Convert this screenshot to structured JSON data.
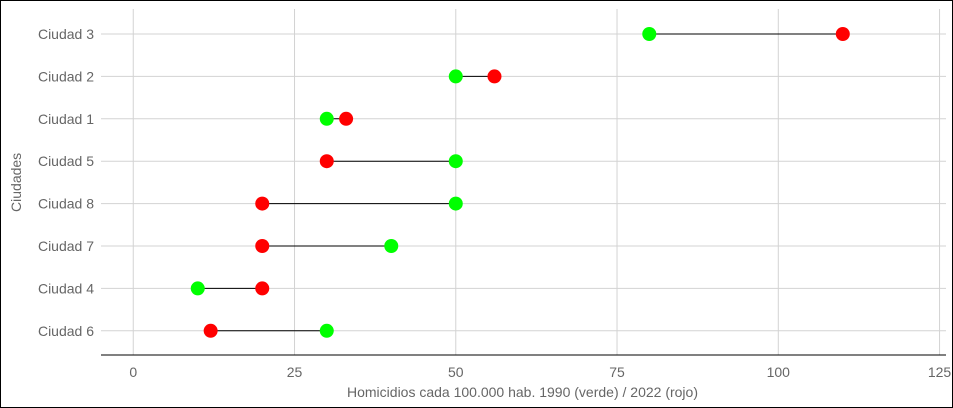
{
  "chart_data": {
    "type": "dumbbell",
    "xlabel": "Homicidios cada 100.000 hab. 1990 (verde) / 2022 (rojo)",
    "ylabel": "Ciudades",
    "xlim": [
      -5,
      126
    ],
    "xticks": [
      0,
      25,
      50,
      75,
      100,
      125
    ],
    "categories": [
      "Ciudad 3",
      "Ciudad 2",
      "Ciudad 1",
      "Ciudad 5",
      "Ciudad 8",
      "Ciudad 7",
      "Ciudad 4",
      "Ciudad 6"
    ],
    "series": [
      {
        "name": "1990",
        "color": "#00ff00",
        "values": [
          80,
          50,
          30,
          50,
          50,
          40,
          10,
          30
        ]
      },
      {
        "name": "2022",
        "color": "#ff0000",
        "values": [
          110,
          56,
          33,
          30,
          20,
          20,
          20,
          12
        ]
      }
    ],
    "grid": true,
    "connector_color": "#000000"
  }
}
